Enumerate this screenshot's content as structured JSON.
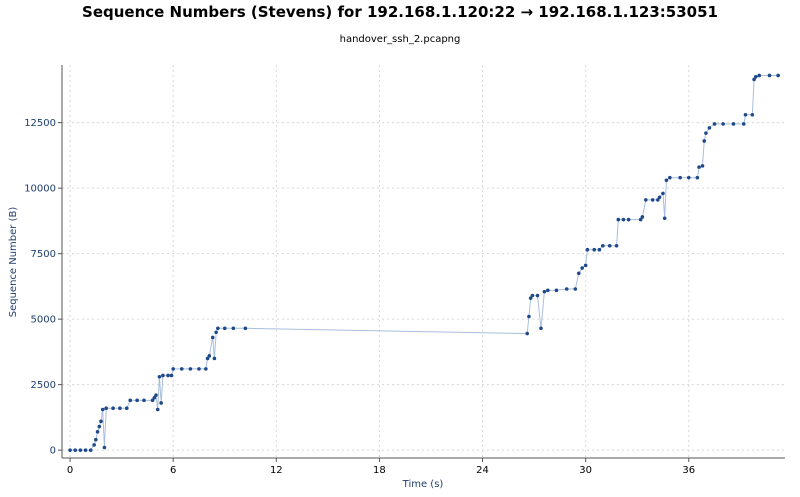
{
  "chart_data": {
    "type": "scatter",
    "title": "Sequence Numbers (Stevens) for 192.168.1.120:22 → 192.168.1.123:53051",
    "subtitle": "handover_ssh_2.pcapng",
    "x_label": "Time (s)",
    "y_label": "Sequence Number (B)",
    "x": [
      0,
      0.3,
      0.6,
      0.9,
      1.2,
      1.4,
      1.5,
      1.6,
      1.7,
      1.8,
      1.9,
      2.0,
      2.1,
      2.5,
      2.9,
      3.3,
      3.5,
      3.9,
      4.3,
      4.8,
      4.9,
      5.0,
      5.1,
      5.2,
      5.3,
      5.4,
      5.7,
      5.9,
      6.0,
      6.5,
      7.0,
      7.5,
      7.9,
      8.0,
      8.1,
      8.3,
      8.4,
      8.5,
      8.6,
      9.0,
      9.5,
      10.2,
      26.6,
      26.7,
      26.8,
      26.9,
      27.2,
      27.4,
      27.6,
      27.8,
      28.3,
      28.9,
      29.4,
      29.6,
      29.8,
      30.0,
      30.1,
      30.5,
      30.8,
      31.0,
      31.4,
      31.8,
      31.9,
      32.2,
      32.5,
      33.2,
      33.3,
      33.5,
      33.9,
      34.2,
      34.3,
      34.5,
      34.6,
      34.7,
      34.9,
      35.5,
      36.0,
      36.5,
      36.6,
      36.8,
      36.9,
      37.0,
      37.2,
      37.5,
      38.0,
      38.6,
      39.2,
      39.3,
      39.7,
      39.8,
      39.9,
      40.1,
      40.7,
      41.2
    ],
    "values": [
      0,
      0,
      0,
      0,
      0,
      200,
      400,
      700,
      900,
      1100,
      1550,
      100,
      1600,
      1600,
      1600,
      1600,
      1900,
      1900,
      1900,
      1900,
      2000,
      2100,
      1550,
      2800,
      1800,
      2850,
      2850,
      2850,
      3100,
      3100,
      3100,
      3100,
      3100,
      3500,
      3600,
      4300,
      3500,
      4500,
      4650,
      4650,
      4650,
      4650,
      4450,
      5100,
      5800,
      5900,
      5900,
      4650,
      6050,
      6100,
      6100,
      6150,
      6150,
      6750,
      6950,
      7050,
      7650,
      7650,
      7650,
      7800,
      7800,
      7800,
      8800,
      8800,
      8800,
      8800,
      8900,
      9550,
      9550,
      9550,
      9650,
      9800,
      8850,
      10300,
      10400,
      10400,
      10400,
      10400,
      10800,
      10850,
      11800,
      12100,
      12300,
      12450,
      12450,
      12450,
      12450,
      12800,
      12800,
      14150,
      14250,
      14300,
      14300,
      14300
    ],
    "color": "#1f4a8a",
    "line_color": "#a9bedc",
    "xlim": [
      -0.47,
      41.6
    ],
    "ylim": [
      -300,
      14700
    ],
    "xticks": [
      0,
      6,
      12,
      18,
      24,
      30,
      36
    ],
    "yticks": [
      0,
      2500,
      5000,
      7500,
      10000,
      12500
    ],
    "grid": true
  }
}
